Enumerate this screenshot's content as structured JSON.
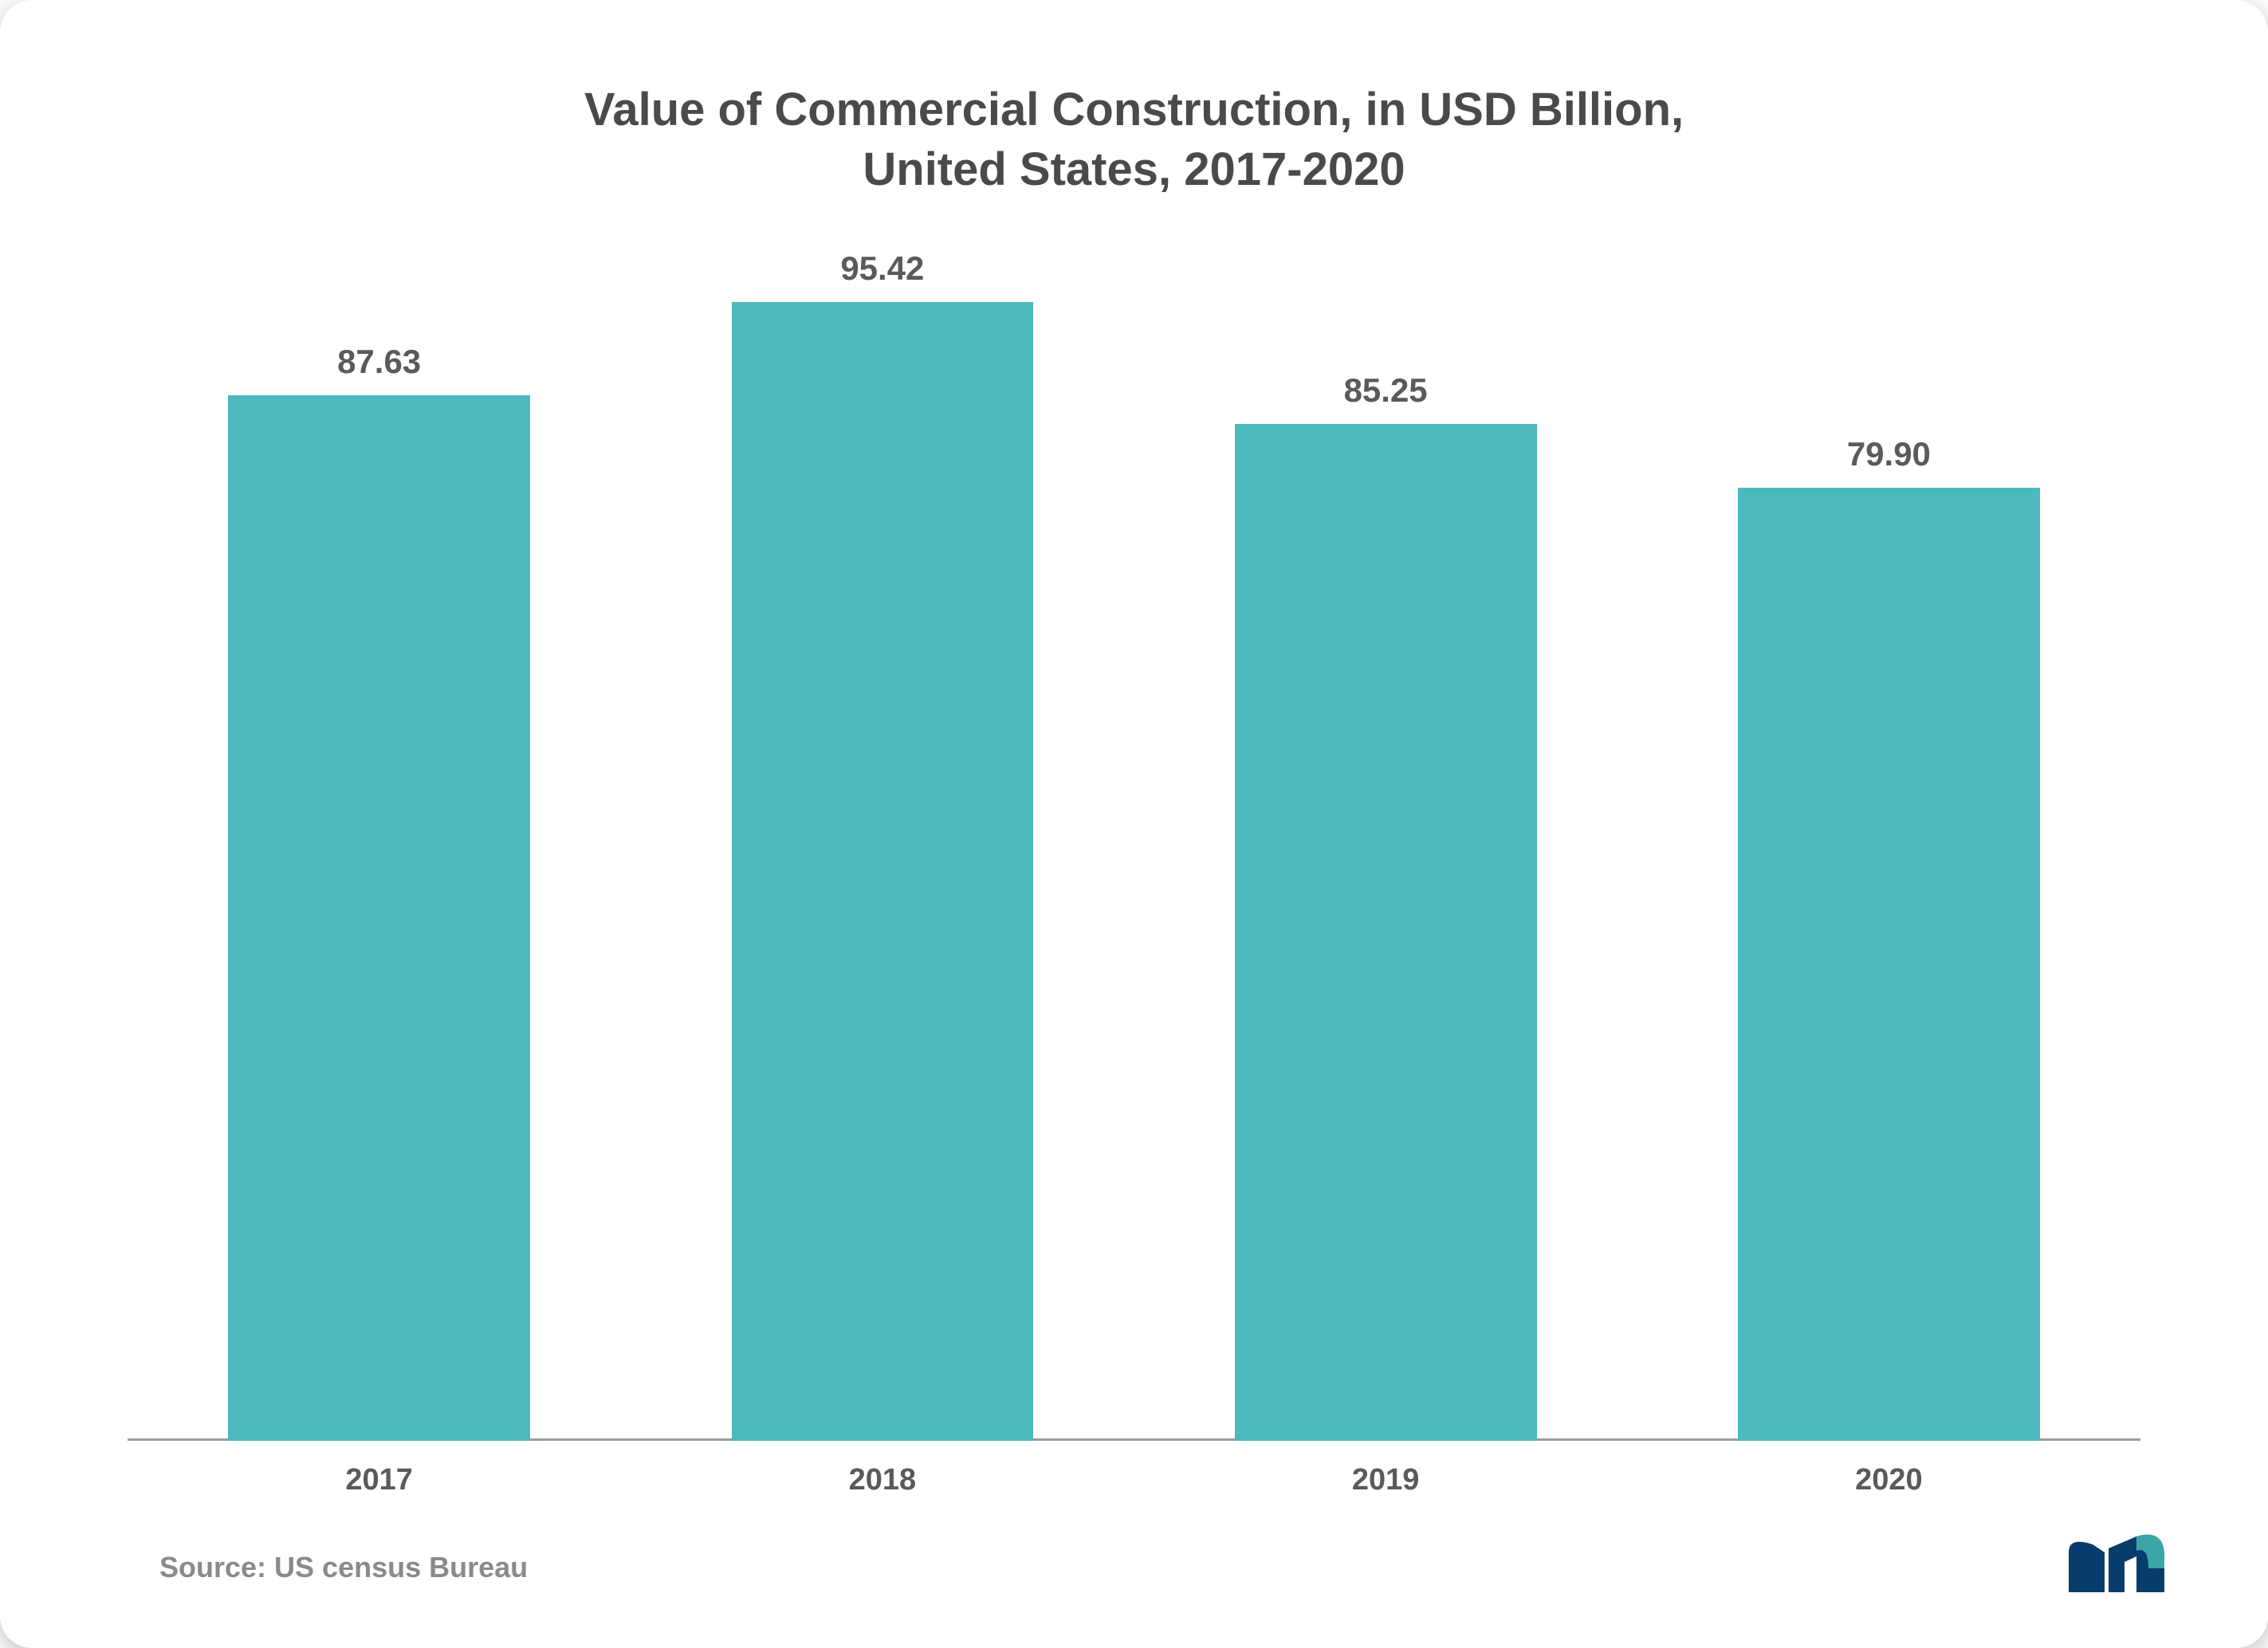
{
  "chart": {
    "type": "bar",
    "title": "Value of Commercial Construction, in USD Billion,\nUnited States, 2017-2020",
    "title_color": "#4a4a4a",
    "title_fontsize": 58,
    "categories": [
      "2017",
      "2018",
      "2019",
      "2020"
    ],
    "values": [
      87.63,
      95.42,
      85.25,
      79.9
    ],
    "value_labels": [
      "87.63",
      "95.42",
      "85.25",
      "79.90"
    ],
    "ylim_max": 100,
    "bar_color": "#4bb9bd",
    "value_label_color": "#5a5a5a",
    "value_label_fontsize": 42,
    "xlabel_color": "#5a5a5a",
    "xlabel_fontsize": 38,
    "baseline_color": "#9c9c9c",
    "bar_width_pct": 60,
    "background_color": "#ffffff"
  },
  "source": {
    "text": "Source: US census Bureau",
    "color": "#8a8a8a",
    "fontsize": 36
  },
  "logo": {
    "primary_color": "#063d6b",
    "accent_color": "#3aa6a9"
  }
}
